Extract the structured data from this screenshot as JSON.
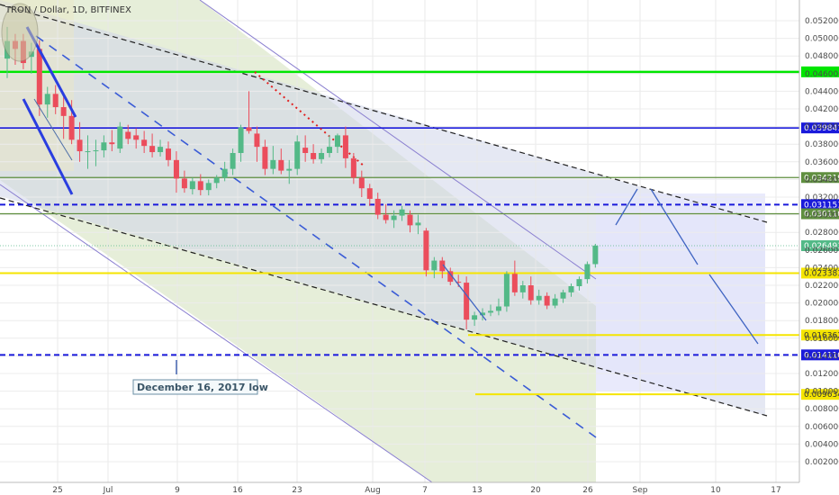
{
  "title": "TRON / Dollar, 1D, BITFINEX",
  "colors": {
    "up": "#53b987",
    "down": "#eb4d5c",
    "green_line": "#00e600",
    "blue_line": "#1a1adb",
    "olive_line": "#5f8f3f",
    "yellow_line": "#f5e500",
    "channel_fill": "#dfe9cf",
    "channel_fill2": "#c8d4f0"
  },
  "note": "December 16, 2017 low",
  "chart_data": {
    "type": "candlestick",
    "ylim": [
      0,
      0.053
    ],
    "y_ticks": [
      "0.052000",
      "0.050000",
      "0.048000",
      "0.046000",
      "0.044000",
      "0.042000",
      "0.040000",
      "0.038000",
      "0.036000",
      "0.034000",
      "0.032000",
      "0.030000",
      "0.028000",
      "0.026000",
      "0.024000",
      "0.022000",
      "0.020000",
      "0.018000",
      "0.016000",
      "0.014000",
      "0.012000",
      "0.010000",
      "0.008000",
      "0.006000",
      "0.004000",
      "0.002000"
    ],
    "x_ticks": [
      "25",
      "Jul",
      "9",
      "16",
      "23",
      "Aug",
      "7",
      "13",
      "20",
      "26",
      "Sep",
      "10",
      "17"
    ],
    "price_levels": [
      {
        "label": "",
        "value": 0.0462,
        "color": "green"
      },
      {
        "label": "0.039841",
        "value": 0.039841,
        "color": "blue"
      },
      {
        "label": "0.034219",
        "value": 0.034219,
        "color": "olive"
      },
      {
        "label": "0.031151",
        "value": 0.031151,
        "color": "blue-dashed"
      },
      {
        "label": "0.030110",
        "value": 0.03011,
        "color": "olive"
      },
      {
        "label": "0.026491",
        "value": 0.026491,
        "color": "current"
      },
      {
        "label": "0.023383",
        "value": 0.023383,
        "color": "yellow"
      },
      {
        "label": "0.016362",
        "value": 0.016362,
        "color": "yellow"
      },
      {
        "label": "0.014110",
        "value": 0.01411,
        "color": "blue-dashed"
      },
      {
        "label": "0.009634",
        "value": 0.009634,
        "color": "yellow"
      }
    ],
    "candles": [
      {
        "o": 0.0477,
        "h": 0.0513,
        "l": 0.0455,
        "c": 0.0497
      },
      {
        "o": 0.0497,
        "h": 0.0505,
        "l": 0.047,
        "c": 0.0488
      },
      {
        "o": 0.0497,
        "h": 0.0505,
        "l": 0.0465,
        "c": 0.0472
      },
      {
        "o": 0.0479,
        "h": 0.0495,
        "l": 0.046,
        "c": 0.0485
      },
      {
        "o": 0.0488,
        "h": 0.0498,
        "l": 0.0412,
        "c": 0.0425
      },
      {
        "o": 0.0425,
        "h": 0.0445,
        "l": 0.041,
        "c": 0.0437
      },
      {
        "o": 0.0437,
        "h": 0.0447,
        "l": 0.0414,
        "c": 0.0422
      },
      {
        "o": 0.0422,
        "h": 0.0437,
        "l": 0.0386,
        "c": 0.0412
      },
      {
        "o": 0.0412,
        "h": 0.043,
        "l": 0.038,
        "c": 0.0385
      },
      {
        "o": 0.0385,
        "h": 0.0405,
        "l": 0.036,
        "c": 0.0372
      },
      {
        "o": 0.0372,
        "h": 0.039,
        "l": 0.0352,
        "c": 0.0372
      },
      {
        "o": 0.0372,
        "h": 0.0385,
        "l": 0.0355,
        "c": 0.0373
      },
      {
        "o": 0.0373,
        "h": 0.039,
        "l": 0.0365,
        "c": 0.0382
      },
      {
        "o": 0.0382,
        "h": 0.0396,
        "l": 0.0372,
        "c": 0.038
      },
      {
        "o": 0.0375,
        "h": 0.0405,
        "l": 0.037,
        "c": 0.04
      },
      {
        "o": 0.0394,
        "h": 0.0402,
        "l": 0.038,
        "c": 0.0386
      },
      {
        "o": 0.039,
        "h": 0.0398,
        "l": 0.0375,
        "c": 0.0385
      },
      {
        "o": 0.0385,
        "h": 0.0395,
        "l": 0.037,
        "c": 0.0378
      },
      {
        "o": 0.0378,
        "h": 0.0392,
        "l": 0.0365,
        "c": 0.0371
      },
      {
        "o": 0.0371,
        "h": 0.0385,
        "l": 0.0366,
        "c": 0.0377
      },
      {
        "o": 0.0375,
        "h": 0.0383,
        "l": 0.0355,
        "c": 0.0362
      },
      {
        "o": 0.0362,
        "h": 0.0372,
        "l": 0.0325,
        "c": 0.0341
      },
      {
        "o": 0.0341,
        "h": 0.035,
        "l": 0.0325,
        "c": 0.033
      },
      {
        "o": 0.0329,
        "h": 0.0342,
        "l": 0.0323,
        "c": 0.0338
      },
      {
        "o": 0.0338,
        "h": 0.0346,
        "l": 0.0322,
        "c": 0.0328
      },
      {
        "o": 0.0328,
        "h": 0.034,
        "l": 0.0322,
        "c": 0.0336
      },
      {
        "o": 0.0336,
        "h": 0.0345,
        "l": 0.033,
        "c": 0.0342
      },
      {
        "o": 0.0342,
        "h": 0.036,
        "l": 0.0338,
        "c": 0.0352
      },
      {
        "o": 0.0352,
        "h": 0.0375,
        "l": 0.0345,
        "c": 0.037
      },
      {
        "o": 0.037,
        "h": 0.0402,
        "l": 0.036,
        "c": 0.0399
      },
      {
        "o": 0.0399,
        "h": 0.044,
        "l": 0.0392,
        "c": 0.0395
      },
      {
        "o": 0.0392,
        "h": 0.04,
        "l": 0.036,
        "c": 0.0377
      },
      {
        "o": 0.0377,
        "h": 0.0385,
        "l": 0.0345,
        "c": 0.0352
      },
      {
        "o": 0.0352,
        "h": 0.0378,
        "l": 0.0346,
        "c": 0.0362
      },
      {
        "o": 0.0362,
        "h": 0.0375,
        "l": 0.0346,
        "c": 0.035
      },
      {
        "o": 0.035,
        "h": 0.0362,
        "l": 0.0335,
        "c": 0.0352
      },
      {
        "o": 0.0352,
        "h": 0.039,
        "l": 0.0345,
        "c": 0.0383
      },
      {
        "o": 0.0376,
        "h": 0.039,
        "l": 0.036,
        "c": 0.037
      },
      {
        "o": 0.037,
        "h": 0.038,
        "l": 0.0358,
        "c": 0.0363
      },
      {
        "o": 0.0363,
        "h": 0.0375,
        "l": 0.0358,
        "c": 0.037
      },
      {
        "o": 0.037,
        "h": 0.039,
        "l": 0.0365,
        "c": 0.0377
      },
      {
        "o": 0.0377,
        "h": 0.0392,
        "l": 0.037,
        "c": 0.039
      },
      {
        "o": 0.039,
        "h": 0.04,
        "l": 0.0353,
        "c": 0.0364
      },
      {
        "o": 0.0364,
        "h": 0.037,
        "l": 0.0335,
        "c": 0.0342
      },
      {
        "o": 0.0342,
        "h": 0.035,
        "l": 0.032,
        "c": 0.033
      },
      {
        "o": 0.033,
        "h": 0.0335,
        "l": 0.031,
        "c": 0.0318
      },
      {
        "o": 0.0318,
        "h": 0.0325,
        "l": 0.0295,
        "c": 0.03
      },
      {
        "o": 0.03,
        "h": 0.0312,
        "l": 0.029,
        "c": 0.0294
      },
      {
        "o": 0.0294,
        "h": 0.0305,
        "l": 0.0285,
        "c": 0.0299
      },
      {
        "o": 0.0299,
        "h": 0.031,
        "l": 0.0293,
        "c": 0.0306
      },
      {
        "o": 0.03,
        "h": 0.0305,
        "l": 0.028,
        "c": 0.0288
      },
      {
        "o": 0.0288,
        "h": 0.03,
        "l": 0.0278,
        "c": 0.0291
      },
      {
        "o": 0.0282,
        "h": 0.0285,
        "l": 0.023,
        "c": 0.0237
      },
      {
        "o": 0.0237,
        "h": 0.0252,
        "l": 0.0228,
        "c": 0.0248
      },
      {
        "o": 0.0248,
        "h": 0.0252,
        "l": 0.0228,
        "c": 0.0236
      },
      {
        "o": 0.0236,
        "h": 0.024,
        "l": 0.022,
        "c": 0.0224
      },
      {
        "o": 0.0224,
        "h": 0.0232,
        "l": 0.0218,
        "c": 0.0223
      },
      {
        "o": 0.0223,
        "h": 0.023,
        "l": 0.017,
        "c": 0.0181
      },
      {
        "o": 0.0181,
        "h": 0.019,
        "l": 0.0174,
        "c": 0.0186
      },
      {
        "o": 0.0186,
        "h": 0.0194,
        "l": 0.018,
        "c": 0.0189
      },
      {
        "o": 0.0189,
        "h": 0.0198,
        "l": 0.0185,
        "c": 0.0191
      },
      {
        "o": 0.0191,
        "h": 0.0205,
        "l": 0.0186,
        "c": 0.0196
      },
      {
        "o": 0.0196,
        "h": 0.0236,
        "l": 0.019,
        "c": 0.0233
      },
      {
        "o": 0.0233,
        "h": 0.0248,
        "l": 0.0208,
        "c": 0.0212
      },
      {
        "o": 0.0212,
        "h": 0.0225,
        "l": 0.0205,
        "c": 0.022
      },
      {
        "o": 0.022,
        "h": 0.023,
        "l": 0.0198,
        "c": 0.0203
      },
      {
        "o": 0.0203,
        "h": 0.0215,
        "l": 0.0198,
        "c": 0.0208
      },
      {
        "o": 0.0208,
        "h": 0.0212,
        "l": 0.0193,
        "c": 0.0197
      },
      {
        "o": 0.0197,
        "h": 0.021,
        "l": 0.0194,
        "c": 0.0205
      },
      {
        "o": 0.0205,
        "h": 0.0215,
        "l": 0.02,
        "c": 0.0212
      },
      {
        "o": 0.0212,
        "h": 0.0222,
        "l": 0.0207,
        "c": 0.0219
      },
      {
        "o": 0.0219,
        "h": 0.023,
        "l": 0.0214,
        "c": 0.0227
      },
      {
        "o": 0.0227,
        "h": 0.0247,
        "l": 0.0222,
        "c": 0.0244
      },
      {
        "o": 0.0244,
        "h": 0.0267,
        "l": 0.024,
        "c": 0.0265
      }
    ]
  }
}
